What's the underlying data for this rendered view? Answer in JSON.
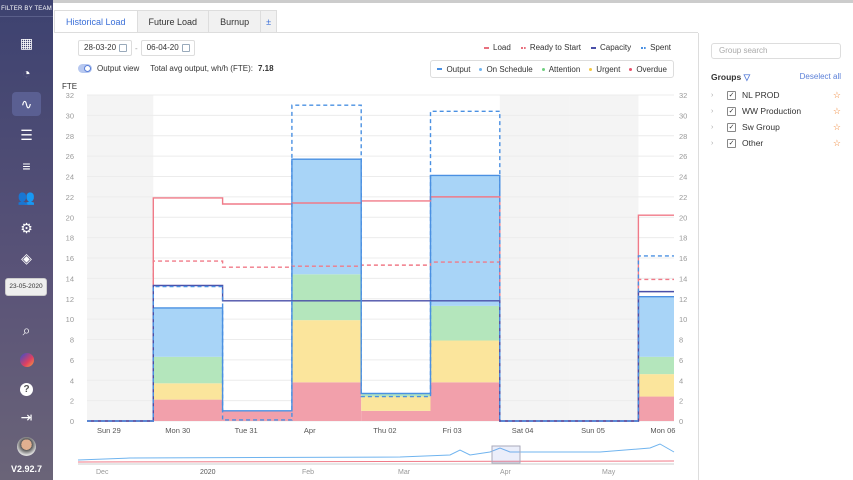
{
  "sidebar": {
    "title": "FILTER BY TEAM",
    "icons": [
      "grid-icon",
      "dashboard-gauge-icon",
      "pulse-chart-icon",
      "list-icon",
      "tree-list-icon",
      "users-icon",
      "gear-icon",
      "layers-icon"
    ],
    "date": "23-05-2020",
    "bottom_icons": [
      "search-activity-icon",
      "user-flag-icon",
      "help-icon",
      "logout-icon"
    ],
    "version": "V2.92.7"
  },
  "tabs": [
    {
      "label": "Historical Load",
      "active": true
    },
    {
      "label": "Future Load"
    },
    {
      "label": "Burnup"
    },
    {
      "label": "±"
    }
  ],
  "controls": {
    "date_from": "28-03-20",
    "date_sep": "-",
    "date_to": "06-04-20",
    "output_view_label": "Output view",
    "output_view_on": true,
    "avg_label": "Total avg output, wh/h (FTE):",
    "avg_value": "7.18"
  },
  "legend": {
    "top": [
      {
        "label": "Load",
        "color": "#e8707e",
        "style": "solid"
      },
      {
        "label": "Ready to Start",
        "color": "#e8707e",
        "style": "dashed"
      },
      {
        "label": "Capacity",
        "color": "#4a4fa8",
        "style": "solid"
      },
      {
        "label": "Spent",
        "color": "#4a90e2",
        "style": "dashed"
      }
    ],
    "box": [
      {
        "label": "Output",
        "color": "#4a90e2"
      },
      {
        "label": "On Schedule",
        "color": "#70b4ef"
      },
      {
        "label": "Attention",
        "color": "#6fcf7f"
      },
      {
        "label": "Urgent",
        "color": "#f5c842"
      },
      {
        "label": "Overdue",
        "color": "#e8506a"
      }
    ]
  },
  "chart_data": {
    "type": "bar",
    "stacked": true,
    "ylabel": "FTE",
    "ylim": [
      0,
      32
    ],
    "yticks": [
      0,
      2,
      4,
      6,
      8,
      10,
      12,
      14,
      16,
      18,
      20,
      22,
      24,
      26,
      28,
      30,
      32
    ],
    "categories": [
      "Sun 29",
      "Mon 30",
      "Tue 31",
      "Apr",
      "Thu 02",
      "Fri 03",
      "Sat 04",
      "Sun 05",
      "Mon 06"
    ],
    "weekend": [
      true,
      false,
      false,
      false,
      false,
      false,
      true,
      true,
      false
    ],
    "series": [
      {
        "name": "Overdue",
        "color": "#f2a0ab",
        "values": [
          0,
          2.1,
          1.0,
          3.8,
          1.0,
          3.8,
          0,
          0,
          2.4
        ]
      },
      {
        "name": "Urgent",
        "color": "#fbe59c",
        "values": [
          0,
          1.6,
          0,
          6.1,
          1.4,
          4.1,
          0,
          0,
          2.2
        ]
      },
      {
        "name": "Attention",
        "color": "#b4e6bc",
        "values": [
          0,
          2.6,
          0,
          4.5,
          0.3,
          3.4,
          0,
          0,
          1.7
        ]
      },
      {
        "name": "On Schedule",
        "color": "#a8d4f7",
        "values": [
          0,
          4.8,
          0,
          11.3,
          0,
          12.8,
          0,
          0,
          5.9
        ]
      }
    ],
    "lines": [
      {
        "name": "Output",
        "color": "#4a90e2",
        "dash": false,
        "values": [
          0,
          11.1,
          1.0,
          25.7,
          2.7,
          24.1,
          0,
          0,
          12.2
        ]
      },
      {
        "name": "Load",
        "color": "#f07a88",
        "dash": false,
        "values": [
          0,
          21.9,
          21.3,
          21.4,
          21.6,
          22.0,
          0,
          0,
          20.2
        ]
      },
      {
        "name": "Ready to Start",
        "color": "#f07a88",
        "dash": true,
        "values": [
          0,
          15.7,
          15.1,
          15.2,
          15.3,
          15.6,
          0,
          0,
          13.9
        ]
      },
      {
        "name": "Capacity",
        "color": "#4a4fa8",
        "dash": false,
        "values": [
          0,
          13.3,
          11.8,
          11.8,
          11.8,
          11.8,
          0,
          0,
          12.7
        ]
      },
      {
        "name": "Spent",
        "color": "#4a90e2",
        "dash": true,
        "values": [
          0,
          13.2,
          0.1,
          31.0,
          2.4,
          30.4,
          0,
          0,
          16.2
        ]
      }
    ],
    "navigator_labels": [
      "Dec",
      "2020",
      "Feb",
      "Mar",
      "Apr",
      "May"
    ]
  },
  "groups": {
    "search_placeholder": "Group search",
    "title": "Groups",
    "deselect": "Deselect all",
    "items": [
      {
        "label": "NL PROD",
        "checked": true
      },
      {
        "label": "WW Production",
        "checked": true
      },
      {
        "label": "Sw Group",
        "checked": true
      },
      {
        "label": "Other",
        "checked": true
      }
    ]
  }
}
